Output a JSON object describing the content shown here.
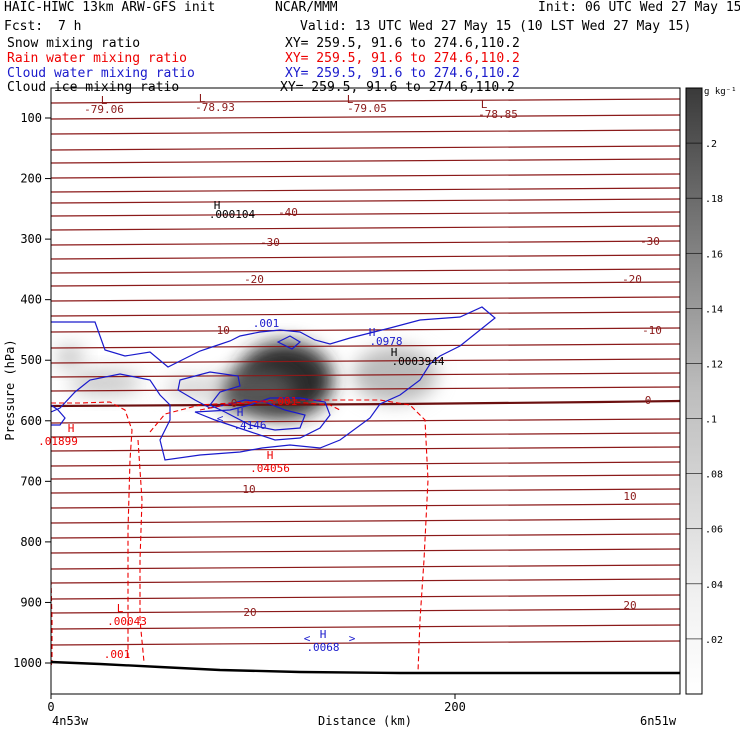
{
  "header": {
    "title": "HAIC-HIWC 13km ARW-GFS init",
    "center": "NCAR/MMM",
    "init": "Init: 06 UTC Wed 27 May 15",
    "fcst_label": "Fcst:",
    "fcst_value": "7 h",
    "valid": "Valid: 13 UTC Wed 27 May 15 (10 LST Wed 27 May 15)"
  },
  "legend": [
    {
      "label": "Snow mixing ratio",
      "xy": "XY= 259.5, 91.6 to 274.6,110.2",
      "color": "#000000"
    },
    {
      "label": "Rain water mixing ratio",
      "xy": "XY= 259.5, 91.6 to 274.6,110.2",
      "color": "#ee0000"
    },
    {
      "label": "Cloud water mixing ratio",
      "xy": "XY= 259.5, 91.6 to 274.6,110.2",
      "color": "#1a1acc"
    },
    {
      "label": "Cloud ice mixing ratio",
      "xy": "XY= 259.5, 91.6 to 274.6,110.2",
      "color": "#000000"
    }
  ],
  "chart_data": {
    "type": "heatmap",
    "description_fields": [
      "snow (shaded)",
      "rain (red dashed)",
      "cloud water (blue)",
      "cloud ice",
      "temperature (brown)"
    ],
    "xlabel": "Distance (km)",
    "ylabel": "Pressure (hPa)",
    "xlim": [
      0,
      310
    ],
    "ylim_hpa": [
      1050,
      65
    ],
    "x_ticks": [
      "0",
      "200"
    ],
    "x_tick_values": [
      0,
      200
    ],
    "y_ticks": [
      "100",
      "200",
      "300",
      "400",
      "500",
      "600",
      "700",
      "800",
      "900",
      "1000"
    ],
    "y_tick_values": [
      100,
      200,
      300,
      400,
      500,
      600,
      700,
      800,
      900,
      1000
    ],
    "x_start_label": "4n53w",
    "x_end_label": "6n51w",
    "colorbar": {
      "unit": "g kg⁻¹",
      "ticks": [
        ".2",
        ".18",
        ".16",
        ".14",
        ".12",
        ".1",
        ".08",
        ".06",
        ".04",
        ".02"
      ],
      "tick_values": [
        0.2,
        0.18,
        0.16,
        0.14,
        0.12,
        0.1,
        0.08,
        0.06,
        0.04,
        0.02
      ],
      "max": 0.22
    },
    "temperature_labels": [
      "-40",
      "-30",
      "-30",
      "-20",
      "-20",
      "-10",
      "-10",
      "0",
      "0",
      "10",
      "10",
      "20",
      "20"
    ],
    "extrema": [
      {
        "kind": "L",
        "value": "-79.06",
        "color": "#8b1a1a"
      },
      {
        "kind": "L",
        "value": "-78.93",
        "color": "#8b1a1a"
      },
      {
        "kind": "L",
        "value": "-79.05",
        "color": "#8b1a1a"
      },
      {
        "kind": "L",
        "value": "-78.85",
        "color": "#8b1a1a"
      },
      {
        "kind": "H",
        "value": ".000104",
        "color": "#000000"
      },
      {
        "kind": "H",
        "value": ".0978",
        "color": "#1a1acc"
      },
      {
        "kind": "H",
        "value": ".0003944",
        "color": "#000000"
      },
      {
        "kind": "H",
        "value": ".4146",
        "color": "#1a1acc"
      },
      {
        "kind": "H",
        "value": ".01899",
        "color": "#ee0000"
      },
      {
        "kind": "H",
        "value": ".04056",
        "color": "#ee0000"
      },
      {
        "kind": "L",
        "value": ".00043",
        "color": "#ee0000"
      },
      {
        "kind": "H",
        "value": ".0068",
        "color": "#1a1acc"
      }
    ],
    "contour_labels": [
      {
        "text": ".001",
        "color": "#1a1acc"
      },
      {
        "text": ".001",
        "color": "#ee0000"
      },
      {
        "text": ".001",
        "color": "#ee0000"
      }
    ],
    "colors": {
      "temperature": "#8b1a1a",
      "rain": "#ee0000",
      "cloud_water": "#1a1acc",
      "snow_max": "#222222"
    }
  }
}
